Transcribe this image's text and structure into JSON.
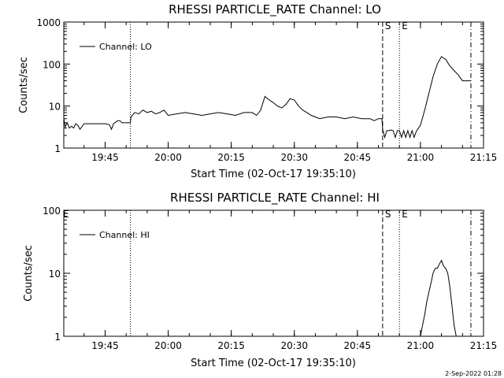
{
  "page": {
    "background": "#ffffff",
    "foreground": "#000000"
  },
  "chart_data": [
    {
      "type": "line",
      "title": "RHESSI PARTICLE_RATE Channel: LO",
      "xlabel": "Start Time (02-Oct-17 19:35:10)",
      "ylabel": "Counts/sec",
      "yscale": "log",
      "xlim": [
        "19:35:10",
        "21:15"
      ],
      "ylim": [
        1,
        1000
      ],
      "x_ticks": [
        "19:45",
        "20:00",
        "20:15",
        "20:30",
        "20:45",
        "21:00",
        "21:15"
      ],
      "y_ticks": [
        "1",
        "10",
        "100",
        "1000"
      ],
      "legend": {
        "placement": "top-left",
        "entries": [
          "Channel: LO"
        ]
      },
      "grid": false,
      "markers": [
        {
          "time": "19:51",
          "style": "dotted",
          "label": ""
        },
        {
          "time": "20:51",
          "style": "dashed",
          "label": "S"
        },
        {
          "time": "20:55",
          "style": "dotted",
          "label": "E"
        },
        {
          "time": "21:12",
          "style": "dash-dot",
          "label": ""
        }
      ],
      "series": [
        {
          "name": "Channel: LO",
          "x": [
            "19:35:10",
            "19:35:30",
            "19:36:00",
            "19:36:30",
            "19:37:00",
            "19:37:30",
            "19:38:00",
            "19:38:30",
            "19:39:00",
            "19:40:00",
            "19:41:00",
            "19:42:00",
            "19:43:00",
            "19:44:00",
            "19:45:00",
            "19:46:00",
            "19:46:30",
            "19:47:00",
            "19:48:00",
            "19:48:30",
            "19:49:00",
            "19:50:00",
            "19:51:00",
            "19:51:10",
            "19:52:00",
            "19:53:00",
            "19:54:00",
            "19:55:00",
            "19:56:00",
            "19:57:00",
            "19:58:00",
            "19:59:00",
            "20:00:00",
            "20:02:00",
            "20:04:00",
            "20:06:00",
            "20:08:00",
            "20:10:00",
            "20:12:00",
            "20:14:00",
            "20:16:00",
            "20:18:00",
            "20:20:00",
            "20:21:00",
            "20:22:00",
            "20:23:00",
            "20:24:00",
            "20:25:00",
            "20:26:00",
            "20:27:00",
            "20:28:00",
            "20:29:00",
            "20:30:00",
            "20:31:00",
            "20:32:00",
            "20:33:00",
            "20:34:00",
            "20:35:00",
            "20:36:00",
            "20:38:00",
            "20:40:00",
            "20:42:00",
            "20:44:00",
            "20:46:00",
            "20:48:00",
            "20:49:00",
            "20:50:00",
            "20:50:50",
            "20:51:00",
            "20:51:30",
            "20:52:00",
            "20:52:30",
            "20:53:00",
            "20:53:30",
            "20:54:00",
            "20:54:30",
            "20:55:00",
            "20:55:30",
            "20:56:00",
            "20:56:30",
            "20:57:00",
            "20:57:30",
            "20:58:00",
            "20:58:30",
            "20:59:00",
            "21:00:00",
            "21:01:00",
            "21:02:00",
            "21:03:00",
            "21:04:00",
            "21:05:00",
            "21:06:00",
            "21:07:00",
            "21:08:00",
            "21:09:00",
            "21:10:00",
            "21:11:00",
            "21:12:00"
          ],
          "y": [
            5,
            3.2,
            4,
            3,
            3.3,
            3,
            3.8,
            3.5,
            2.8,
            3.8,
            3.8,
            3.8,
            3.8,
            3.8,
            3.8,
            3.6,
            2.8,
            3.8,
            4.5,
            4.5,
            4,
            4,
            4,
            5.5,
            7,
            6.5,
            8,
            7,
            7.5,
            6.5,
            7,
            8,
            6,
            6.5,
            7,
            6.5,
            6,
            6.5,
            7,
            6.5,
            6,
            7,
            7,
            6,
            8,
            17,
            14,
            12,
            10,
            9,
            11,
            15,
            14,
            10,
            8,
            7,
            6,
            5.5,
            5,
            5.5,
            5.5,
            5,
            5.5,
            5,
            5,
            4.5,
            5,
            5,
            2.8,
            1.8,
            2.6,
            2.6,
            2.7,
            2.6,
            1.8,
            2.6,
            2.6,
            1.8,
            2.6,
            1.8,
            2.6,
            1.8,
            2.6,
            1.8,
            2.5,
            3.5,
            8,
            20,
            50,
            100,
            150,
            130,
            90,
            70,
            55,
            40,
            40,
            40
          ]
        }
      ]
    },
    {
      "type": "line",
      "title": "RHESSI PARTICLE_RATE Channel: HI",
      "xlabel": "Start Time (02-Oct-17 19:35:10)",
      "ylabel": "Counts/sec",
      "yscale": "log",
      "xlim": [
        "19:35:10",
        "21:15"
      ],
      "ylim": [
        1,
        100
      ],
      "x_ticks": [
        "19:45",
        "20:00",
        "20:15",
        "20:30",
        "20:45",
        "21:00",
        "21:15"
      ],
      "y_ticks": [
        "1",
        "10",
        "100"
      ],
      "legend": {
        "placement": "top-left",
        "entries": [
          "Channel: HI"
        ]
      },
      "grid": false,
      "markers": [
        {
          "time": "19:51",
          "style": "dotted",
          "label": ""
        },
        {
          "time": "20:51",
          "style": "dashed",
          "label": "S"
        },
        {
          "time": "20:55",
          "style": "dotted",
          "label": "E"
        },
        {
          "time": "21:12",
          "style": "dash-dot",
          "label": ""
        }
      ],
      "series": [
        {
          "name": "Channel: HI",
          "x": [
            "21:00:00",
            "21:00:30",
            "21:01:00",
            "21:01:30",
            "21:02:00",
            "21:02:30",
            "21:03:00",
            "21:03:30",
            "21:04:00",
            "21:04:30",
            "21:05:00",
            "21:05:30",
            "21:06:00",
            "21:06:30",
            "21:07:00",
            "21:07:30",
            "21:08:00",
            "21:08:30"
          ],
          "y": [
            1,
            1.5,
            2.2,
            3.5,
            5,
            7,
            10,
            12,
            12,
            14,
            16,
            13,
            12,
            10,
            6,
            3,
            1.5,
            1
          ]
        }
      ]
    }
  ],
  "corner_label_left": "E",
  "timestamp": "2-Sep-2022 01:28"
}
